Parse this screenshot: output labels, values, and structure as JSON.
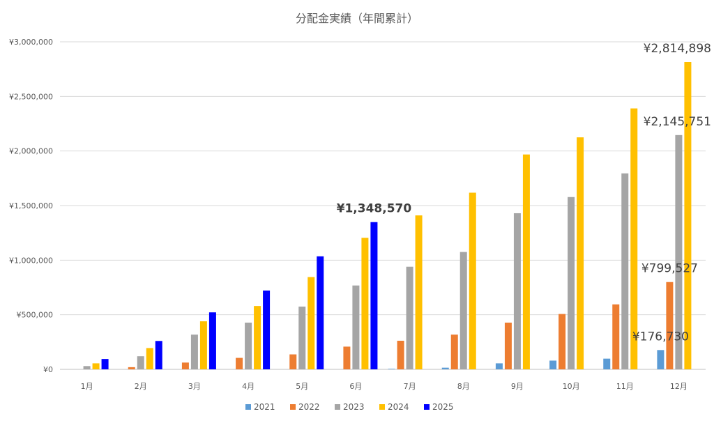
{
  "chart_data": {
    "type": "bar",
    "title": "分配金実績（年間累計）",
    "xlabel": "",
    "ylabel": "",
    "ylim": [
      0,
      3000000
    ],
    "yticks": [
      0,
      500000,
      1000000,
      1500000,
      2000000,
      2500000,
      3000000
    ],
    "ytick_labels": [
      "¥0",
      "¥500,000",
      "¥1,000,000",
      "¥1,500,000",
      "¥2,000,000",
      "¥2,500,000",
      "¥3,000,000"
    ],
    "grid": true,
    "legend_position": "bottom",
    "categories": [
      "1月",
      "2月",
      "3月",
      "4月",
      "5月",
      "6月",
      "7月",
      "8月",
      "9月",
      "10月",
      "11月",
      "12月"
    ],
    "series": [
      {
        "name": "2021",
        "color": "#5b9bd5",
        "values": [
          0,
          0,
          0,
          0,
          0,
          0,
          5000,
          15000,
          55000,
          80000,
          98000,
          176730
        ]
      },
      {
        "name": "2022",
        "color": "#ed7d31",
        "values": [
          0,
          20000,
          62000,
          105000,
          137000,
          208000,
          262000,
          318000,
          428000,
          507000,
          595000,
          799527
        ]
      },
      {
        "name": "2023",
        "color": "#a5a5a5",
        "values": [
          30000,
          120000,
          318000,
          428000,
          575000,
          768000,
          940000,
          1075000,
          1430000,
          1578000,
          1795000,
          2145751
        ]
      },
      {
        "name": "2024",
        "color": "#ffc000",
        "values": [
          55000,
          195000,
          440000,
          580000,
          845000,
          1205000,
          1410000,
          1618000,
          1968000,
          2125000,
          2390000,
          2814898
        ]
      },
      {
        "name": "2025",
        "color": "#0000ff",
        "values": [
          95000,
          260000,
          522000,
          722000,
          1035000,
          1348570,
          null,
          null,
          null,
          null,
          null,
          null
        ]
      }
    ],
    "annotations": [
      {
        "text": "¥1,348,570",
        "series": "2025",
        "category": "6月",
        "bold": true
      },
      {
        "text": "¥2,814,898",
        "series": "2024",
        "category": "12月",
        "bold": false
      },
      {
        "text": "¥2,145,751",
        "series": "2023",
        "category": "12月",
        "bold": false
      },
      {
        "text": "¥799,527",
        "series": "2022",
        "category": "12月",
        "bold": false
      },
      {
        "text": "¥176,730",
        "series": "2021",
        "category": "12月",
        "bold": false
      }
    ]
  }
}
